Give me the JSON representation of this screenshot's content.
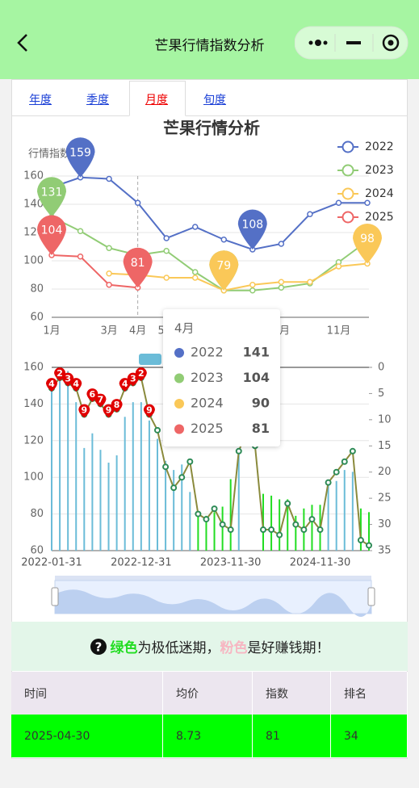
{
  "header": {
    "title": "芒果行情指数分析"
  },
  "tabs": {
    "items": [
      "年度",
      "季度",
      "月度",
      "旬度"
    ],
    "active": 2
  },
  "chart_data": [
    {
      "type": "line",
      "title": "芒果行情分析",
      "y_label": "行情指数",
      "categories": [
        "1月",
        null,
        "3月",
        "4月",
        "5月",
        null,
        "7月",
        null,
        "9月",
        null,
        "11月",
        null
      ],
      "series": [
        {
          "name": "2022",
          "color": "#5470c6",
          "values": [
            152,
            159,
            158,
            141,
            116,
            124,
            115,
            108,
            112,
            133,
            141,
            141
          ]
        },
        {
          "name": "2023",
          "color": "#91cc75",
          "values": [
            131,
            121,
            109,
            104,
            107,
            92,
            79,
            79,
            81,
            84,
            99,
            114
          ]
        },
        {
          "name": "2024",
          "color": "#fac858",
          "values": [
            null,
            null,
            91,
            90,
            88,
            88,
            79,
            83,
            85,
            85,
            96,
            98
          ]
        },
        {
          "name": "2025",
          "color": "#ee6666",
          "values": [
            104,
            103,
            83,
            81,
            null,
            null,
            null,
            null,
            null,
            null,
            null,
            null
          ]
        }
      ],
      "ylim": [
        60,
        160
      ],
      "yticks": [
        60,
        80,
        100,
        120,
        140,
        160
      ],
      "grid": true,
      "legend": "top-right",
      "mark_points": [
        "max",
        "min"
      ],
      "tooltip": {
        "category": 3
      }
    },
    {
      "type": "bar-line",
      "x": [
        "2022-01-31",
        null,
        null,
        null,
        null,
        null,
        null,
        null,
        null,
        null,
        null,
        "2022-12-31",
        null,
        null,
        null,
        null,
        null,
        null,
        null,
        null,
        null,
        null,
        "2023-11-30",
        null,
        null,
        null,
        null,
        null,
        null,
        null,
        null,
        null,
        null,
        "2024-11-30",
        null,
        null,
        null,
        null,
        null,
        null
      ],
      "series": [
        {
          "type": "bar",
          "color": "#6bbcd8",
          "colors": [
            "#6bbcd8",
            "#6bbcd8",
            "#6bbcd8",
            "#6bbcd8",
            "#6bbcd8",
            "#6bbcd8",
            "#6bbcd8",
            "#6bbcd8",
            "#6bbcd8",
            "#6bbcd8",
            "#6bbcd8",
            "#6bbcd8",
            "#6bbcd8",
            "#6bbcd8",
            "#6bbcd8",
            "#6bbcd8",
            "#6bbcd8",
            "#6bbcd8",
            "#22dd22",
            "#22dd22",
            "#22dd22",
            "#22dd22",
            "#22dd22",
            "#6bbcd8",
            "#6bbcd8",
            "#6bbcd8",
            "#22dd22",
            "#22dd22",
            "#22dd22",
            "#22dd22",
            "#22dd22",
            "#22dd22",
            "#22dd22",
            "#22dd22",
            "#6bbcd8",
            "#6bbcd8",
            "#6bbcd8",
            "#6bbcd8",
            "#22dd22",
            "#22dd22"
          ],
          "values": [
            152,
            159,
            158,
            141,
            116,
            124,
            115,
            108,
            112,
            133,
            141,
            141,
            131,
            121,
            109,
            104,
            107,
            92,
            79,
            79,
            81,
            84,
            99,
            114,
            null,
            null,
            91,
            90,
            88,
            88,
            79,
            83,
            85,
            85,
            96,
            98,
            104,
            103,
            83,
            81
          ]
        },
        {
          "type": "line",
          "axis": "y2",
          "color": "#8a8a3c",
          "marker_color": "#2e8b57",
          "label_color": "#e00000",
          "values": [
            4,
            2,
            3,
            4,
            9,
            6,
            7,
            9,
            8,
            4,
            3,
            2,
            9,
            12,
            19,
            23,
            21,
            18,
            28,
            29,
            27,
            30,
            31,
            16,
            12,
            15,
            31,
            31,
            32,
            26,
            30,
            31,
            29,
            31,
            22,
            20,
            18,
            16,
            33,
            34
          ],
          "value_labels": [
            "4",
            "2",
            "3",
            "4",
            "9",
            "6",
            "7",
            "9",
            "8",
            "4",
            "3",
            "2",
            "9",
            null,
            null,
            null,
            null,
            null,
            null,
            null,
            null,
            null,
            null,
            null,
            null,
            null,
            null,
            null,
            null,
            null,
            null,
            null,
            null,
            null,
            null,
            null,
            null,
            null,
            null,
            null
          ]
        }
      ],
      "ylim": [
        60,
        160
      ],
      "yticks": [
        60,
        80,
        100,
        120,
        140,
        160
      ],
      "y2lim": [
        0,
        35
      ],
      "y2ticks": [
        0,
        5,
        10,
        15,
        20,
        25,
        30,
        35
      ],
      "y2_inverse": true,
      "grid": true
    }
  ],
  "notice": {
    "parts": [
      "绿色",
      "为极低迷期，",
      "粉色",
      "是好赚钱期！"
    ]
  },
  "table": {
    "columns": [
      "时间",
      "均价",
      "指数",
      "排名"
    ],
    "rows": [
      [
        "2025-04-30",
        "8.73",
        "81",
        "34"
      ]
    ]
  }
}
